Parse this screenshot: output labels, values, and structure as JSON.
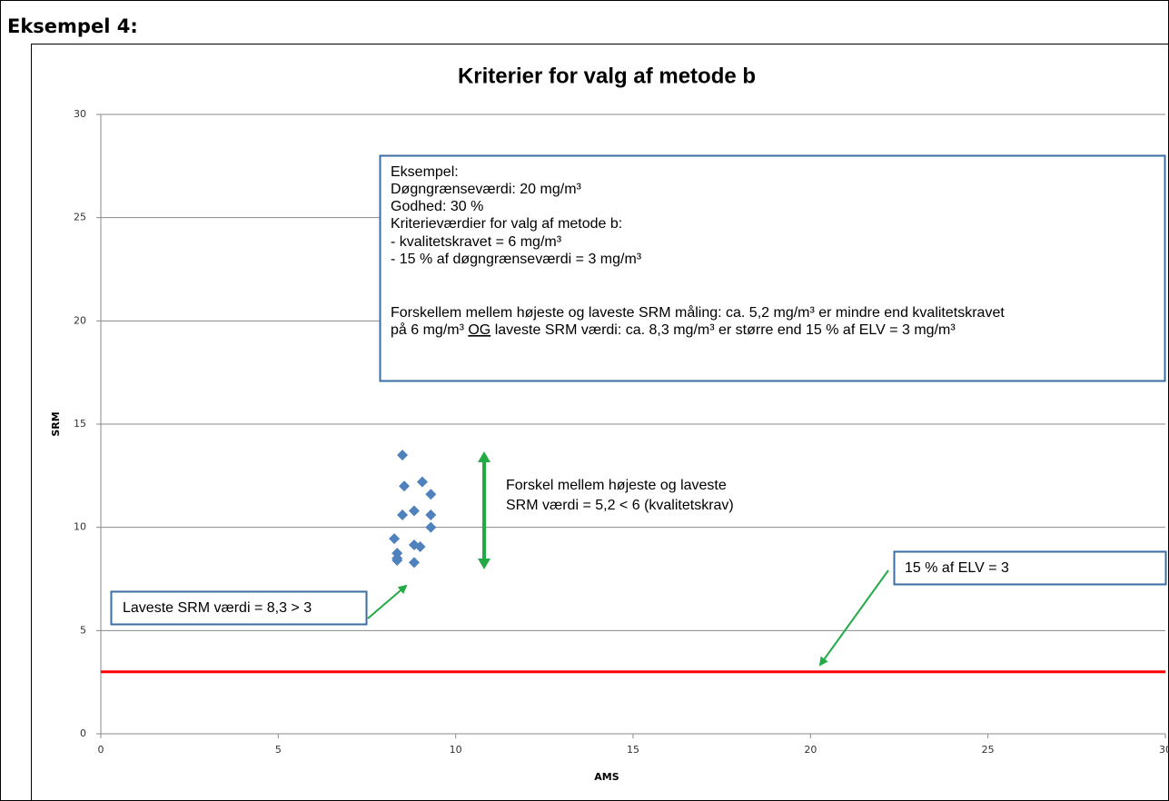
{
  "heading": "Eksempel 4:",
  "chart_data": {
    "type": "scatter",
    "title": "Kriterier for valg af metode b",
    "x_label": "AMS",
    "y_label": "SRM",
    "xlim": [
      0,
      30
    ],
    "xticks": [
      0,
      5,
      10,
      15,
      20,
      25,
      30
    ],
    "ylim": [
      0,
      30
    ],
    "yticks": [
      0,
      5,
      10,
      15,
      20,
      25,
      30
    ],
    "grid": true,
    "series": [
      {
        "color": "#4f81bd",
        "x": [
          8.5,
          8.55,
          9.06,
          9.3,
          9.3,
          8.83,
          8.5,
          9.3,
          8.27,
          8.35,
          8.35,
          8.35,
          8.83,
          9.0,
          8.83
        ],
        "values": [
          13.5,
          12.0,
          12.2,
          11.6,
          10.6,
          10.8,
          10.6,
          10.0,
          9.45,
          8.75,
          8.5,
          8.4,
          9.15,
          9.06,
          8.3
        ]
      }
    ],
    "reference_line": {
      "value": 3,
      "color": "#ff0000"
    },
    "annotations": {
      "example_box": {
        "lines": [
          "Eksempel:",
          "Døgngrænseværdi: 20 mg/m³",
          "Godhed: 30 %",
          "Kriterieværdier for valg af metode b:",
          "- kvalitetskravet = 6 mg/m³",
          "- 15 % af døgngrænseværdi = 3 mg/m³",
          "Forskellem mellem højeste og laveste SRM måling: ca. 5,2 mg/m³ er mindre end kvalitetskravet"
        ],
        "last_line": {
          "before": "på 6 mg/m³ ",
          "underlined": "OG",
          "after": " laveste SRM værdi: ca. 8,3 mg/m³ er større end 15 % af ELV = 3 mg/m³"
        }
      },
      "range_note": [
        "Forskel mellem højeste og laveste",
        "SRM værdi = 5,2 < 6 (kvalitetskrav)"
      ],
      "lowest_note": "Laveste SRM værdi = 8,3 > 3",
      "elv_note": "15 % af ELV = 3"
    }
  }
}
